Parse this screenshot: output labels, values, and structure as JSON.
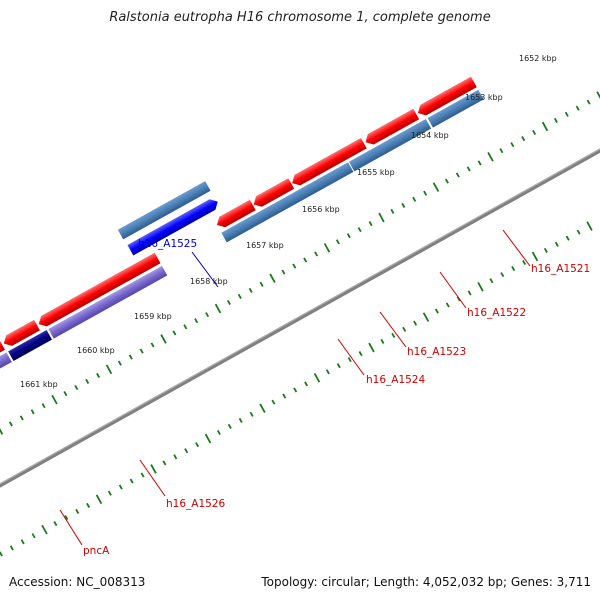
{
  "title": "Ralstonia eutropha H16 chromosome 1, complete genome",
  "footer": {
    "accession": "Accession: NC_008313",
    "topology": "Topology: circular; Length: 4,052,032 bp; Genes: 3,711"
  },
  "scale_labels": [
    "1652 kbp",
    "1653 kbp",
    "1654 kbp",
    "1655 kbp",
    "1656 kbp",
    "1657 kbp",
    "1658 kbp",
    "1659 kbp",
    "1660 kbp",
    "1661 kbp"
  ],
  "genes": [
    {
      "name": "h16_A1521",
      "color": "#cc0000"
    },
    {
      "name": "h16_A1522",
      "color": "#cc0000"
    },
    {
      "name": "h16_A1523",
      "color": "#cc0000"
    },
    {
      "name": "h16_A1524",
      "color": "#cc0000"
    },
    {
      "name": "h16_A1525",
      "color": "#0000cc"
    },
    {
      "name": "h16_A1526",
      "color": "#cc0000"
    },
    {
      "name": "pncA",
      "color": "#cc0000"
    }
  ],
  "colors": {
    "forward_cds": "#ff0000",
    "reverse_cds": "#0000ff",
    "forward_cog": "#4a7fb5",
    "reverse_cog": "#7766cc",
    "dark_cog": "#000080",
    "backbone": "#808080",
    "ticks": "#1a7a1a"
  }
}
